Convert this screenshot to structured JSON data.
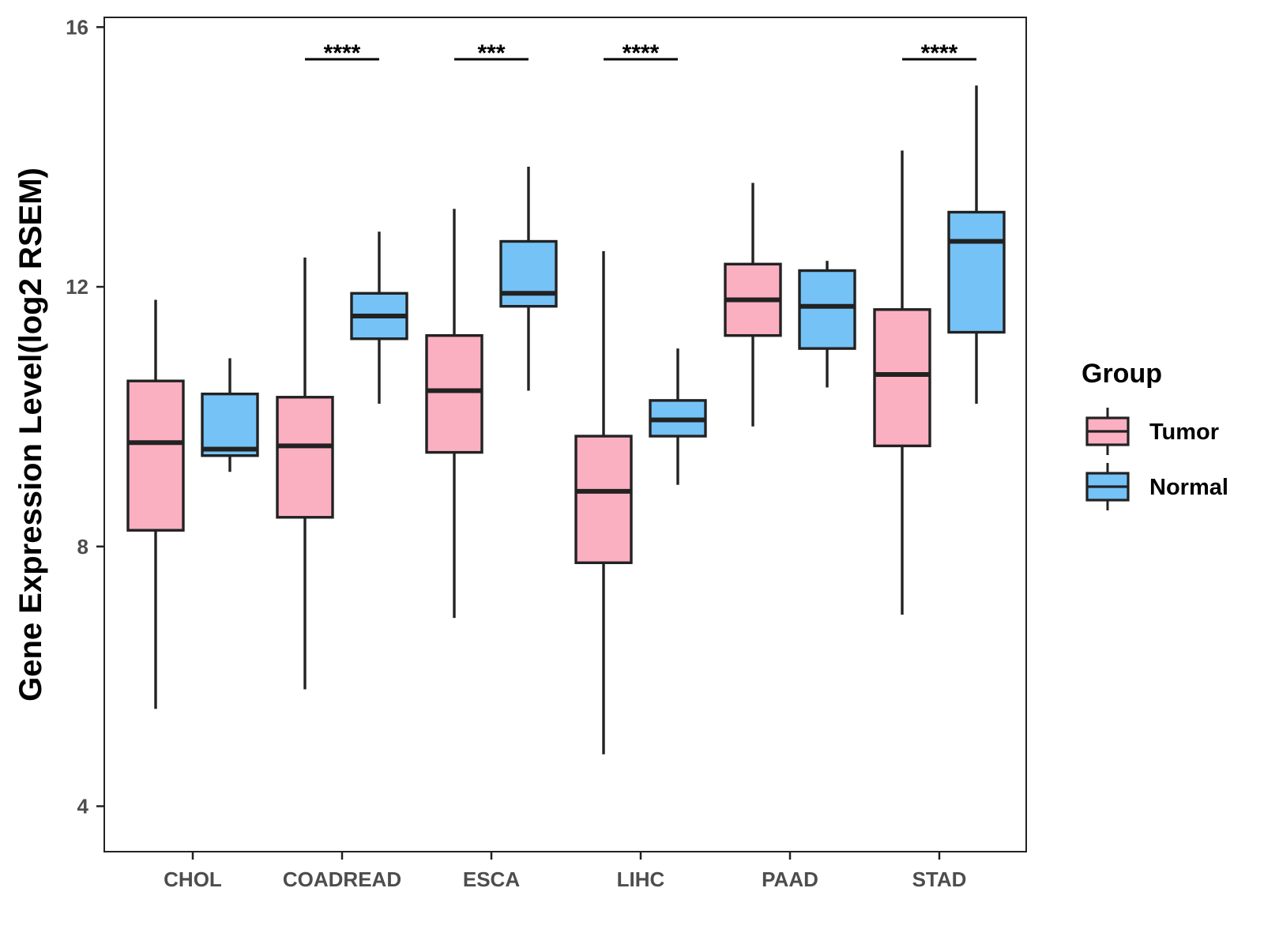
{
  "chart_data": {
    "type": "boxplot",
    "title": "",
    "xlabel": "",
    "ylabel": "Gene Expression Level(log2 RSEM)",
    "ylim": [
      3.3,
      16.15
    ],
    "yticks": [
      4,
      8,
      12,
      16
    ],
    "categories": [
      "CHOL",
      "COADREAD",
      "ESCA",
      "LIHC",
      "PAAD",
      "STAD"
    ],
    "legend": {
      "title": "Group",
      "position": "right"
    },
    "series": [
      {
        "name": "Tumor",
        "color": "#fbb0c2",
        "boxes": [
          {
            "category": "CHOL",
            "min": 5.5,
            "q1": 8.25,
            "median": 9.6,
            "q3": 10.55,
            "max": 11.8
          },
          {
            "category": "COADREAD",
            "min": 5.8,
            "q1": 8.45,
            "median": 9.55,
            "q3": 10.3,
            "max": 12.45
          },
          {
            "category": "ESCA",
            "min": 6.9,
            "q1": 9.45,
            "median": 10.4,
            "q3": 11.25,
            "max": 13.2
          },
          {
            "category": "LIHC",
            "min": 4.8,
            "q1": 7.75,
            "median": 8.85,
            "q3": 9.7,
            "max": 12.55
          },
          {
            "category": "PAAD",
            "min": 9.85,
            "q1": 11.25,
            "median": 11.8,
            "q3": 12.35,
            "max": 13.6
          },
          {
            "category": "STAD",
            "min": 6.95,
            "q1": 9.55,
            "median": 10.65,
            "q3": 11.65,
            "max": 14.1
          }
        ]
      },
      {
        "name": "Normal",
        "color": "#75c2f6",
        "boxes": [
          {
            "category": "CHOL",
            "min": 9.15,
            "q1": 9.4,
            "median": 9.5,
            "q3": 10.35,
            "max": 10.9
          },
          {
            "category": "COADREAD",
            "min": 10.2,
            "q1": 11.2,
            "median": 11.55,
            "q3": 11.9,
            "max": 12.85
          },
          {
            "category": "ESCA",
            "min": 10.4,
            "q1": 11.7,
            "median": 11.9,
            "q3": 12.7,
            "max": 13.85
          },
          {
            "category": "LIHC",
            "min": 8.95,
            "q1": 9.7,
            "median": 9.95,
            "q3": 10.25,
            "max": 11.05
          },
          {
            "category": "PAAD",
            "min": 10.45,
            "q1": 11.05,
            "median": 11.7,
            "q3": 12.25,
            "max": 12.4
          },
          {
            "category": "STAD",
            "min": 10.2,
            "q1": 11.3,
            "median": 12.7,
            "q3": 13.15,
            "max": 15.1
          }
        ]
      }
    ],
    "significance": [
      {
        "category": "CHOL",
        "label": ""
      },
      {
        "category": "COADREAD",
        "label": "****"
      },
      {
        "category": "ESCA",
        "label": "***"
      },
      {
        "category": "LIHC",
        "label": "****"
      },
      {
        "category": "PAAD",
        "label": ""
      },
      {
        "category": "STAD",
        "label": "****"
      }
    ]
  }
}
